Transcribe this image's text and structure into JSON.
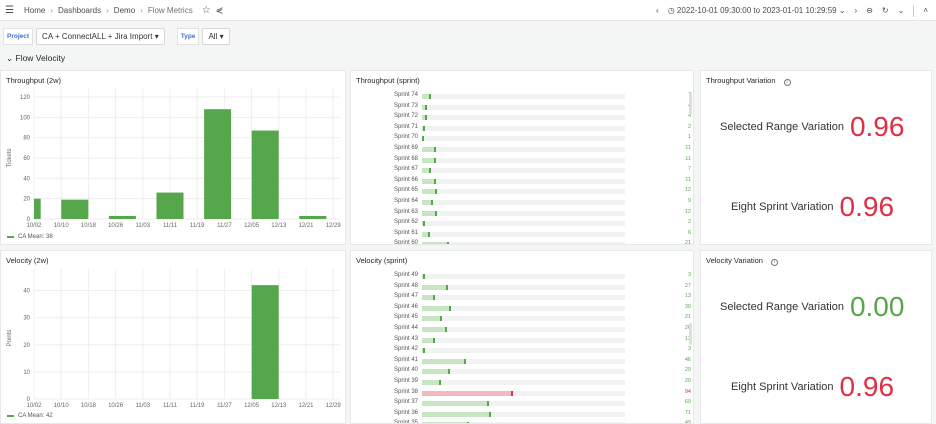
{
  "breadcrumb": [
    "Home",
    "Dashboards",
    "Demo",
    "Flow Metrics"
  ],
  "time_range": "2022-10-01 09:30:00 to 2023-01-01 10:29:59",
  "filters": {
    "project_label": "Project",
    "project_value": "CA + ConnectALL + Jira Import",
    "type_label": "Type",
    "type_value": "All"
  },
  "row_title": "Flow Velocity",
  "colors": {
    "green": "#56a64b",
    "red": "#e02f44",
    "light_green": "#c8e6c4",
    "light_red": "#f4b9c0"
  },
  "chart_data": [
    {
      "type": "bar",
      "title": "Throughput (2w)",
      "ylabel": "Tickets",
      "ylim": [
        0,
        120
      ],
      "yticks": [
        0,
        20,
        40,
        60,
        80,
        100,
        120
      ],
      "xticks": [
        "10/02",
        "10/10",
        "10/18",
        "10/26",
        "11/03",
        "11/11",
        "11/19",
        "11/27",
        "12/05",
        "12/13",
        "12/21",
        "12/29"
      ],
      "x": [
        "09/30",
        "10/14",
        "10/28",
        "11/11",
        "11/25",
        "12/09",
        "12/23"
      ],
      "values": [
        20,
        19,
        3,
        26,
        108,
        87,
        3
      ],
      "legend": "CA  Mean: 38",
      "grid": true
    },
    {
      "type": "bar",
      "title": "Velocity (2w)",
      "ylabel": "Points",
      "ylim": [
        0,
        45
      ],
      "yticks": [
        0,
        10,
        20,
        30,
        40
      ],
      "xticks": [
        "10/02",
        "10/10",
        "10/18",
        "10/26",
        "11/03",
        "11/11",
        "11/19",
        "11/27",
        "12/05",
        "12/13",
        "12/21",
        "12/29"
      ],
      "x": [
        "12/09"
      ],
      "values": [
        42
      ],
      "legend": "CA  Mean: 42",
      "grid": true
    },
    {
      "type": "bar",
      "orientation": "horizontal",
      "title": "Throughput (sprint)",
      "max": 160,
      "categories": [
        "Sprint 74",
        "Sprint 73",
        "Sprint 72",
        "Sprint 71",
        "Sprint 70",
        "Sprint 69",
        "Sprint 68",
        "Sprint 67",
        "Sprint 66",
        "Sprint 65",
        "Sprint 64",
        "Sprint 63",
        "Sprint 62",
        "Sprint 61",
        "Sprint 60"
      ],
      "values": [
        7,
        4,
        4,
        2,
        1,
        11,
        11,
        7,
        11,
        12,
        9,
        12,
        2,
        6,
        21
      ]
    },
    {
      "type": "bar",
      "orientation": "horizontal",
      "title": "Velocity (sprint)",
      "max": 210,
      "red_threshold": 80,
      "categories": [
        "Sprint 49",
        "Sprint 48",
        "Sprint 47",
        "Sprint 46",
        "Sprint 45",
        "Sprint 44",
        "Sprint 43",
        "Sprint 42",
        "Sprint 41",
        "Sprint 40",
        "Sprint 39",
        "Sprint 38",
        "Sprint 37",
        "Sprint 36",
        "Sprint 35"
      ],
      "values": [
        3,
        27,
        13,
        30,
        21,
        26,
        13,
        3,
        46,
        29,
        20,
        94,
        69,
        71,
        49
      ]
    }
  ],
  "throughput_variation": {
    "title": "Throughput Variation",
    "selected_label": "Selected Range Variation",
    "selected_value": "0.96",
    "eight_label": "Eight Sprint Variation",
    "eight_value": "0.96"
  },
  "velocity_variation": {
    "title": "Velocity Variation",
    "selected_label": "Selected Range Variation",
    "selected_value": "0.00",
    "eight_label": "Eight Sprint Variation",
    "eight_value": "0.96"
  }
}
